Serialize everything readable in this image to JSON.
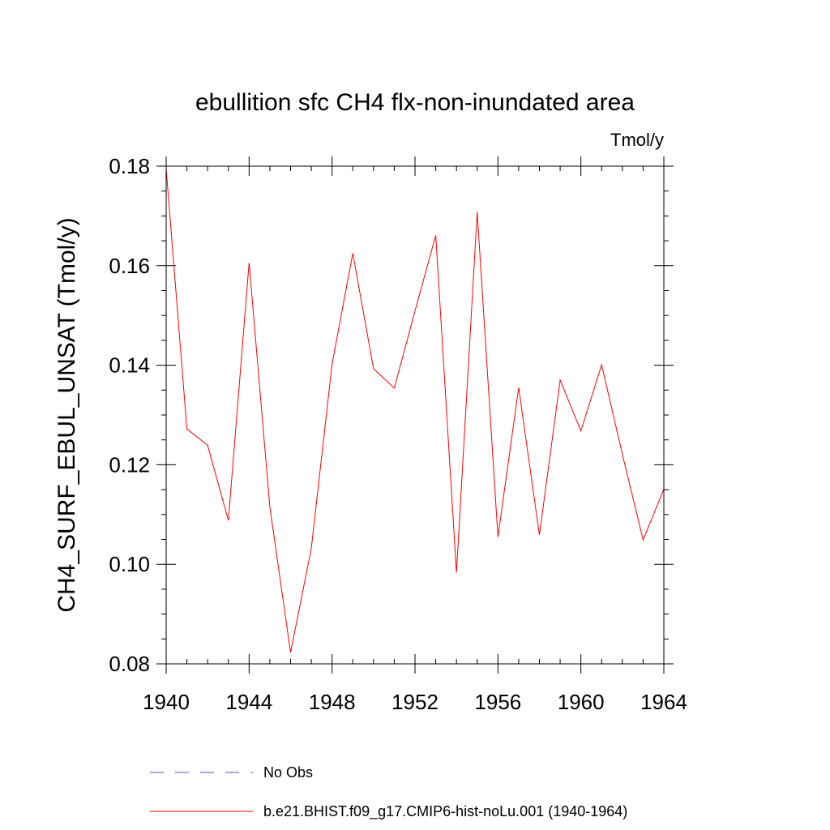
{
  "chart_data": {
    "type": "line",
    "title": "ebullition sfc CH4 flx-non-inundated area",
    "units": "Tmol/y",
    "ylabel": "CH4_SURF_EBUL_UNSAT  (Tmol/y)",
    "xlabel": "",
    "xlim": [
      1940,
      1964
    ],
    "ylim": [
      0.08,
      0.18
    ],
    "x_ticks": [
      1940,
      1944,
      1948,
      1952,
      1956,
      1960,
      1964
    ],
    "y_ticks": [
      0.08,
      0.1,
      0.12,
      0.14,
      0.16,
      0.18
    ],
    "y_tick_labels": [
      "0.08",
      "0.10",
      "0.12",
      "0.14",
      "0.16",
      "0.18"
    ],
    "grid": false,
    "legend_position": "bottom",
    "series": [
      {
        "name": "No Obs",
        "color": "#5555cc",
        "dashed": true,
        "x": [],
        "values": []
      },
      {
        "name": "b.e21.BHIST.f09_g17.CMIP6-hist-noLu.001 (1940-1964)",
        "color": "#ff0000",
        "dashed": false,
        "x": [
          1940,
          1941,
          1942,
          1943,
          1944,
          1945,
          1946,
          1947,
          1948,
          1949,
          1950,
          1951,
          1952,
          1953,
          1954,
          1955,
          1956,
          1957,
          1958,
          1959,
          1960,
          1961,
          1962,
          1963,
          1964
        ],
        "values": [
          0.1795,
          0.1272,
          0.1239,
          0.1088,
          0.1606,
          0.1115,
          0.0823,
          0.1032,
          0.1402,
          0.1625,
          0.1393,
          0.1354,
          0.1509,
          0.1661,
          0.0983,
          0.1708,
          0.1055,
          0.1355,
          0.1059,
          0.137,
          0.1268,
          0.1401,
          0.1221,
          0.1049,
          0.1151
        ]
      }
    ]
  }
}
